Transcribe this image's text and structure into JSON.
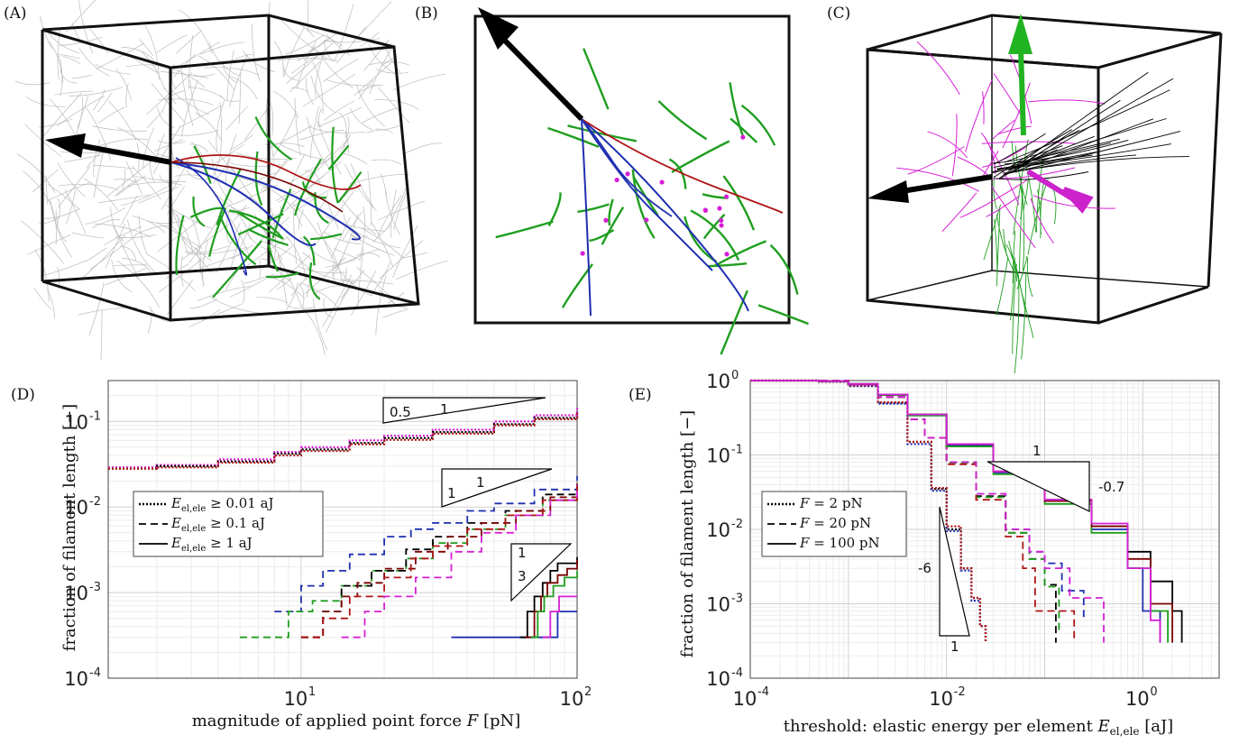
{
  "panels": {
    "A": {
      "label": "(A)"
    },
    "B": {
      "label": "(B)"
    },
    "C": {
      "label": "(C)"
    },
    "D": {
      "label": "(D)"
    },
    "E": {
      "label": "(E)"
    }
  },
  "colors": {
    "background_filaments": "#bdbdbd",
    "green": "#1f9e1f",
    "blue": "#1f2fb0",
    "red": "#b01515",
    "magenta": "#d61fd6",
    "black": "#000000",
    "darkred": "#7a0000",
    "pink": "#ff55cc",
    "arrow_green": "#22b322",
    "arrow_magenta": "#cc22cc"
  },
  "chart_data": [
    {
      "type": "line",
      "panel": "(D)",
      "xscale": "log",
      "yscale": "log",
      "xlabel": "magnitude of applied point force F [pN]",
      "ylabel": "fraction of filament length [−]",
      "xlim": [
        2,
        100
      ],
      "ylim": [
        0.0001,
        0.3
      ],
      "xticks": [
        {
          "base": "10",
          "exp": "1",
          "v": 10
        },
        {
          "base": "10",
          "exp": "2",
          "v": 100
        }
      ],
      "yticks": [
        {
          "base": "10",
          "exp": "-4",
          "v": 0.0001
        },
        {
          "base": "10",
          "exp": "-3",
          "v": 0.001
        },
        {
          "base": "10",
          "exp": "-2",
          "v": 0.01
        },
        {
          "base": "10",
          "exp": "-1",
          "v": 0.1
        }
      ],
      "legend": {
        "position": "left",
        "entries": [
          {
            "label": "E_el,ele ≥ 0.01 aJ",
            "style": "dotted",
            "sym": "E",
            "sub": "el,ele",
            "rel": " ≥ 0.01 aJ"
          },
          {
            "label": "E_el,ele ≥ 0.1 aJ",
            "style": "dashed",
            "sym": "E",
            "sub": "el,ele",
            "rel": " ≥ 0.1 aJ"
          },
          {
            "label": "E_el,ele ≥ 1 aJ",
            "style": "solid",
            "sym": "E",
            "sub": "el,ele",
            "rel": " ≥ 1 aJ"
          }
        ]
      },
      "slope_triangles": [
        {
          "run": "1",
          "rise": "0.5"
        },
        {
          "run": "1",
          "rise": "1"
        },
        {
          "run": "1",
          "rise": "3"
        }
      ],
      "series": [
        {
          "style": "dotted",
          "color": "#d61fd6",
          "x": [
            2,
            3,
            5,
            8,
            10,
            15,
            20,
            30,
            50,
            70,
            100
          ],
          "y": [
            0.029,
            0.031,
            0.036,
            0.044,
            0.05,
            0.06,
            0.068,
            0.08,
            0.1,
            0.118,
            0.145
          ]
        },
        {
          "style": "dotted",
          "color": "#000000",
          "x": [
            2,
            3,
            5,
            8,
            10,
            15,
            20,
            30,
            50,
            70,
            100
          ],
          "y": [
            0.028,
            0.03,
            0.034,
            0.042,
            0.047,
            0.056,
            0.064,
            0.075,
            0.093,
            0.11,
            0.133
          ]
        },
        {
          "style": "dotted",
          "color": "#b01515",
          "x": [
            2,
            3,
            5,
            8,
            10,
            15,
            20,
            30,
            50,
            70,
            100
          ],
          "y": [
            0.028,
            0.029,
            0.033,
            0.04,
            0.045,
            0.054,
            0.061,
            0.072,
            0.09,
            0.106,
            0.128
          ]
        },
        {
          "style": "dashed",
          "color": "#1f2fb0",
          "x": [
            8,
            10,
            12,
            15,
            20,
            25,
            30,
            40,
            50,
            70,
            100
          ],
          "y": [
            0.0006,
            0.0012,
            0.0018,
            0.0028,
            0.0045,
            0.0055,
            0.0065,
            0.009,
            0.011,
            0.016,
            0.023
          ]
        },
        {
          "style": "dashed",
          "color": "#1f9e1f",
          "x": [
            6,
            8,
            9,
            11,
            14,
            18,
            24,
            30,
            40,
            55,
            75,
            100
          ],
          "y": [
            0.0003,
            0.0003,
            0.0006,
            0.0008,
            0.0012,
            0.0018,
            0.0025,
            0.0038,
            0.0055,
            0.008,
            0.012,
            0.018
          ]
        },
        {
          "style": "dashed",
          "color": "#000000",
          "x": [
            10,
            12,
            14,
            18,
            24,
            30,
            40,
            55,
            75,
            100
          ],
          "y": [
            0.0003,
            0.0006,
            0.0012,
            0.0018,
            0.0032,
            0.0045,
            0.0065,
            0.009,
            0.014,
            0.02
          ]
        },
        {
          "style": "dashed",
          "color": "#7a0000",
          "x": [
            10,
            12,
            14,
            16,
            20,
            26,
            34,
            45,
            60,
            80,
            100
          ],
          "y": [
            0.0003,
            0.0006,
            0.0009,
            0.0013,
            0.0019,
            0.003,
            0.0045,
            0.0065,
            0.009,
            0.013,
            0.019
          ]
        },
        {
          "style": "dashed",
          "color": "#b01515",
          "x": [
            10,
            12,
            15,
            20,
            25,
            30,
            40,
            55,
            75,
            100
          ],
          "y": [
            0.0003,
            0.0005,
            0.0009,
            0.0015,
            0.0025,
            0.0035,
            0.0055,
            0.008,
            0.012,
            0.018
          ]
        },
        {
          "style": "dashed",
          "color": "#d61fd6",
          "x": [
            14,
            17,
            20,
            26,
            35,
            45,
            60,
            80,
            100
          ],
          "y": [
            0.0003,
            0.0006,
            0.0009,
            0.0015,
            0.003,
            0.005,
            0.008,
            0.012,
            0.018
          ]
        },
        {
          "style": "solid",
          "color": "#1f2fb0",
          "x": [
            35,
            50,
            60,
            70,
            85,
            100
          ],
          "y": [
            0.0003,
            0.0003,
            0.0003,
            0.0003,
            0.0006,
            0.0006
          ]
        },
        {
          "style": "solid",
          "color": "#000000",
          "x": [
            62,
            66,
            70,
            75,
            80,
            85,
            100
          ],
          "y": [
            0.0003,
            0.0006,
            0.0009,
            0.0013,
            0.0018,
            0.0022,
            0.0026
          ]
        },
        {
          "style": "solid",
          "color": "#7a0000",
          "x": [
            65,
            70,
            74,
            78,
            85,
            92,
            100
          ],
          "y": [
            0.0003,
            0.0006,
            0.0009,
            0.0013,
            0.0016,
            0.0019,
            0.0024
          ]
        },
        {
          "style": "solid",
          "color": "#1f9e1f",
          "x": [
            68,
            72,
            76,
            82,
            90,
            100
          ],
          "y": [
            0.0003,
            0.0006,
            0.0009,
            0.0012,
            0.0015,
            0.0018
          ]
        },
        {
          "style": "solid",
          "color": "#d61fd6",
          "x": [
            75,
            80,
            86,
            92,
            100
          ],
          "y": [
            0.0003,
            0.0006,
            0.0009,
            0.0009,
            0.0009
          ]
        }
      ]
    },
    {
      "type": "line",
      "panel": "(E)",
      "xscale": "log",
      "yscale": "log",
      "xlabel": "threshold: elastic energy per element E_el,ele [aJ]",
      "ylabel": "fraction of filament length [−]",
      "xlim": [
        0.0001,
        6
      ],
      "ylim": [
        0.0001,
        1
      ],
      "xticks": [
        {
          "base": "10",
          "exp": "-4",
          "v": 0.0001
        },
        {
          "base": "10",
          "exp": "-2",
          "v": 0.01
        },
        {
          "base": "10",
          "exp": "0",
          "v": 1
        }
      ],
      "yticks": [
        {
          "base": "10",
          "exp": "-4",
          "v": 0.0001
        },
        {
          "base": "10",
          "exp": "-3",
          "v": 0.001
        },
        {
          "base": "10",
          "exp": "-2",
          "v": 0.01
        },
        {
          "base": "10",
          "exp": "-1",
          "v": 0.1
        },
        {
          "base": "10",
          "exp": "0",
          "v": 1
        }
      ],
      "legend": {
        "position": "left",
        "entries": [
          {
            "label": "F = 2 pN",
            "style": "dotted",
            "sym": "F",
            "rel": " = 2 pN"
          },
          {
            "label": "F = 20 pN",
            "style": "dashed",
            "sym": "F",
            "rel": " = 20 pN"
          },
          {
            "label": "F = 100 pN",
            "style": "solid",
            "sym": "F",
            "rel": " = 100 pN"
          }
        ]
      },
      "slope_triangles": [
        {
          "run": "1",
          "rise": "-0.7"
        },
        {
          "run": "1",
          "rise": "-6"
        }
      ],
      "series": [
        {
          "style": "dotted",
          "color": "#000000",
          "x": [
            0.0001,
            0.0005,
            0.001,
            0.002,
            0.004,
            0.007,
            0.01,
            0.014,
            0.018,
            0.022,
            0.025
          ],
          "y": [
            1,
            0.97,
            0.85,
            0.5,
            0.15,
            0.035,
            0.01,
            0.003,
            0.0012,
            0.0005,
            0.0003
          ]
        },
        {
          "style": "dotted",
          "color": "#1f2fb0",
          "x": [
            0.0001,
            0.0005,
            0.001,
            0.002,
            0.004,
            0.007,
            0.01,
            0.014,
            0.018,
            0.022,
            0.025
          ],
          "y": [
            1,
            0.97,
            0.84,
            0.49,
            0.14,
            0.033,
            0.0095,
            0.0028,
            0.0011,
            0.0005,
            0.0003
          ]
        },
        {
          "style": "dotted",
          "color": "#b01515",
          "x": [
            0.0001,
            0.0005,
            0.001,
            0.002,
            0.004,
            0.007,
            0.01,
            0.014,
            0.018,
            0.022,
            0.025
          ],
          "y": [
            1,
            0.97,
            0.86,
            0.51,
            0.15,
            0.036,
            0.011,
            0.003,
            0.0012,
            0.0005,
            0.0003
          ]
        },
        {
          "style": "dashed",
          "color": "#1f2fb0",
          "x": [
            0.0001,
            0.001,
            0.002,
            0.004,
            0.006,
            0.01,
            0.02,
            0.04,
            0.07,
            0.1,
            0.15,
            0.25
          ],
          "y": [
            1,
            0.88,
            0.6,
            0.3,
            0.17,
            0.08,
            0.03,
            0.01,
            0.005,
            0.0035,
            0.0015,
            0.0006
          ]
        },
        {
          "style": "dashed",
          "color": "#000000",
          "x": [
            0.0001,
            0.001,
            0.002,
            0.004,
            0.006,
            0.01,
            0.02,
            0.04,
            0.07,
            0.1,
            0.13
          ],
          "y": [
            1,
            0.88,
            0.6,
            0.3,
            0.17,
            0.08,
            0.028,
            0.009,
            0.004,
            0.0018,
            0.0003
          ]
        },
        {
          "style": "dashed",
          "color": "#1f9e1f",
          "x": [
            0.0001,
            0.001,
            0.002,
            0.004,
            0.006,
            0.01,
            0.02,
            0.04,
            0.07,
            0.1,
            0.14
          ],
          "y": [
            1,
            0.88,
            0.6,
            0.3,
            0.17,
            0.078,
            0.027,
            0.009,
            0.004,
            0.0017,
            0.0004
          ]
        },
        {
          "style": "dashed",
          "color": "#b01515",
          "x": [
            0.0001,
            0.001,
            0.002,
            0.004,
            0.006,
            0.01,
            0.02,
            0.04,
            0.06,
            0.08,
            0.2
          ],
          "y": [
            1,
            0.88,
            0.6,
            0.3,
            0.17,
            0.075,
            0.025,
            0.008,
            0.003,
            0.0008,
            0.0003
          ]
        },
        {
          "style": "dashed",
          "color": "#d61fd6",
          "x": [
            0.0001,
            0.001,
            0.002,
            0.004,
            0.006,
            0.01,
            0.02,
            0.04,
            0.07,
            0.1,
            0.18,
            0.4
          ],
          "y": [
            1,
            0.88,
            0.6,
            0.3,
            0.17,
            0.08,
            0.03,
            0.01,
            0.005,
            0.003,
            0.0012,
            0.0003
          ]
        },
        {
          "style": "solid",
          "color": "#000000",
          "x": [
            0.0001,
            0.0005,
            0.001,
            0.002,
            0.004,
            0.01,
            0.03,
            0.1,
            0.3,
            0.7,
            1.2,
            2,
            2.5
          ],
          "y": [
            1,
            0.98,
            0.9,
            0.65,
            0.35,
            0.14,
            0.06,
            0.025,
            0.011,
            0.005,
            0.002,
            0.0008,
            0.0003
          ]
        },
        {
          "style": "solid",
          "color": "#1f2fb0",
          "x": [
            0.0001,
            0.0005,
            0.001,
            0.002,
            0.004,
            0.01,
            0.03,
            0.1,
            0.3,
            0.7,
            1,
            1.5
          ],
          "y": [
            1,
            0.98,
            0.9,
            0.64,
            0.34,
            0.135,
            0.058,
            0.024,
            0.01,
            0.003,
            0.0008,
            0.0003
          ]
        },
        {
          "style": "solid",
          "color": "#1f9e1f",
          "x": [
            0.0001,
            0.0005,
            0.001,
            0.002,
            0.004,
            0.01,
            0.03,
            0.1,
            0.3,
            0.7,
            1.2,
            1.8
          ],
          "y": [
            1,
            0.98,
            0.9,
            0.64,
            0.34,
            0.13,
            0.055,
            0.022,
            0.009,
            0.003,
            0.0008,
            0.0003
          ]
        },
        {
          "style": "solid",
          "color": "#7a0000",
          "x": [
            0.0001,
            0.0005,
            0.001,
            0.002,
            0.004,
            0.01,
            0.03,
            0.1,
            0.3,
            0.7,
            1.2,
            2
          ],
          "y": [
            1,
            0.98,
            0.9,
            0.65,
            0.35,
            0.14,
            0.06,
            0.024,
            0.011,
            0.004,
            0.001,
            0.0003
          ]
        },
        {
          "style": "solid",
          "color": "#d61fd6",
          "x": [
            0.0001,
            0.0005,
            0.001,
            0.002,
            0.004,
            0.01,
            0.03,
            0.1,
            0.3,
            0.7,
            1.2,
            1.5
          ],
          "y": [
            1,
            0.98,
            0.9,
            0.65,
            0.35,
            0.14,
            0.06,
            0.025,
            0.012,
            0.003,
            0.0006,
            0.0003
          ]
        }
      ]
    }
  ]
}
